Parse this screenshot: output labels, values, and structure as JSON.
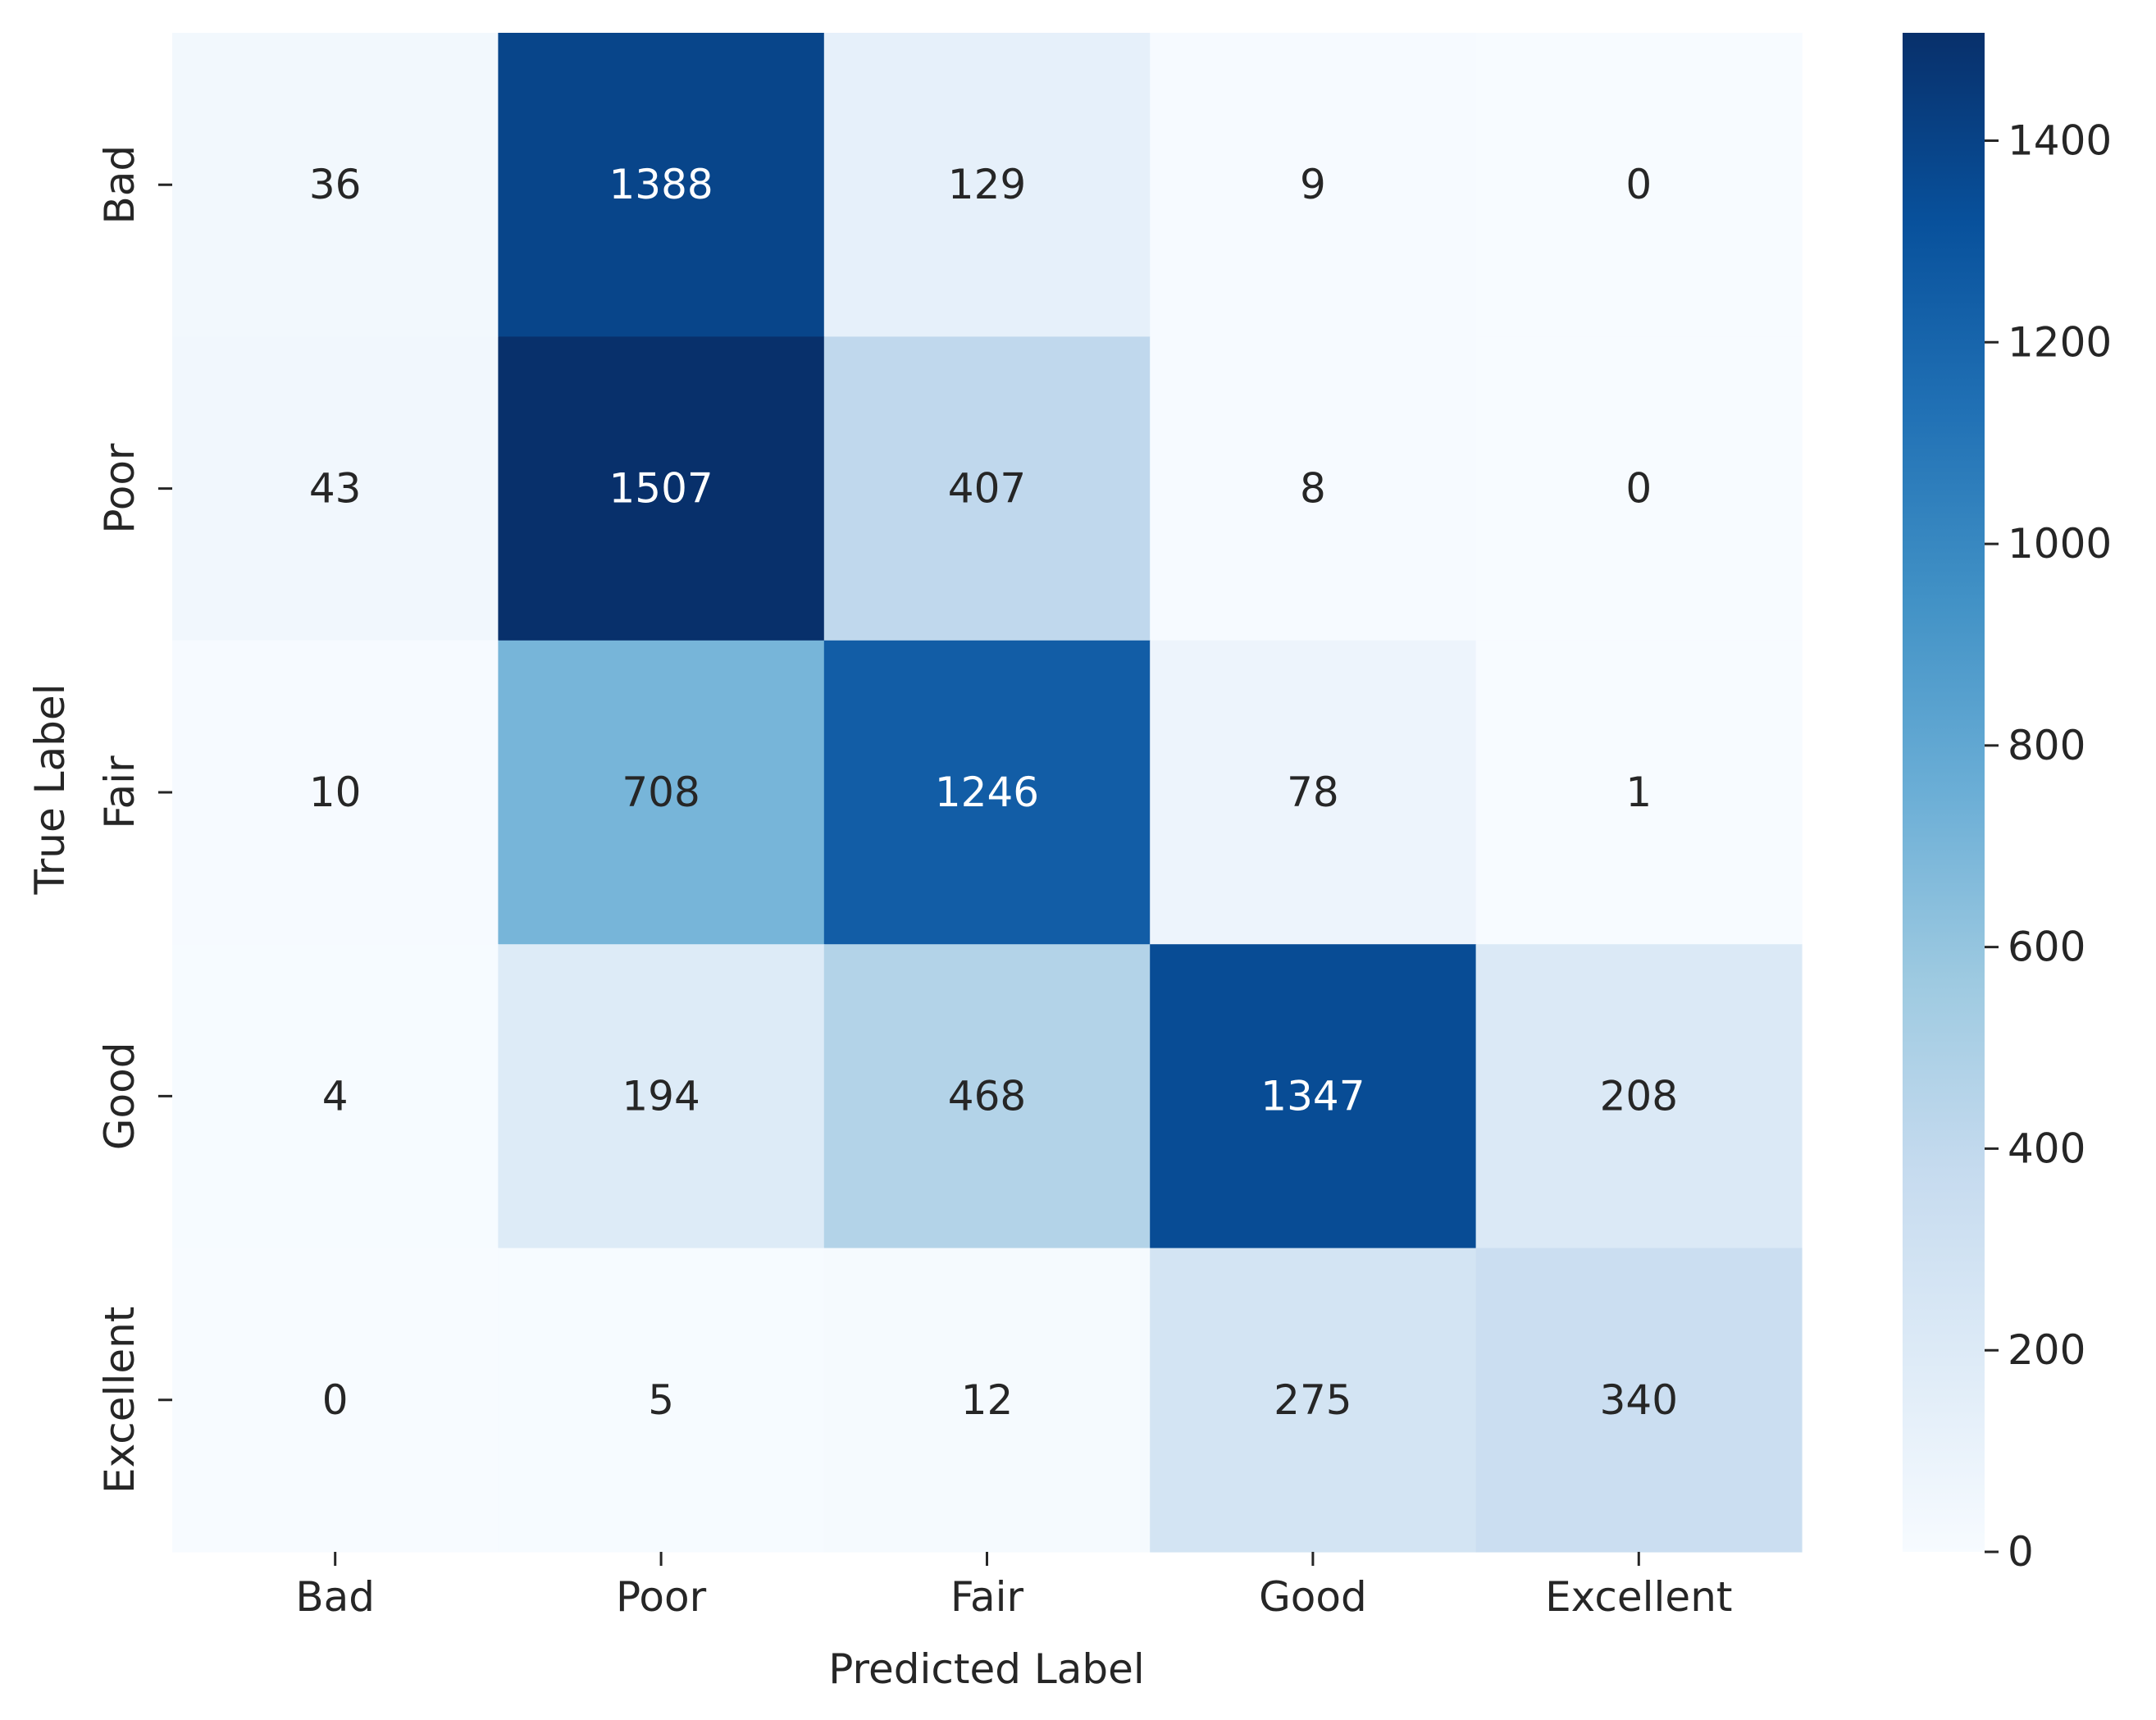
{
  "chart_data": {
    "type": "heatmap",
    "title": "",
    "xlabel": "Predicted Label",
    "ylabel": "True Label",
    "x_categories": [
      "Bad",
      "Poor",
      "Fair",
      "Good",
      "Excellent"
    ],
    "y_categories": [
      "Bad",
      "Poor",
      "Fair",
      "Good",
      "Excellent"
    ],
    "values": [
      [
        36,
        1388,
        129,
        9,
        0
      ],
      [
        43,
        1507,
        407,
        8,
        0
      ],
      [
        10,
        708,
        1246,
        78,
        1
      ],
      [
        4,
        194,
        468,
        1347,
        208
      ],
      [
        0,
        5,
        12,
        275,
        340
      ]
    ],
    "colormap": "Blues",
    "colorbar": {
      "min": 0,
      "max": 1507,
      "ticks": [
        0,
        200,
        400,
        600,
        800,
        1000,
        1200,
        1400
      ]
    },
    "grid": false
  }
}
